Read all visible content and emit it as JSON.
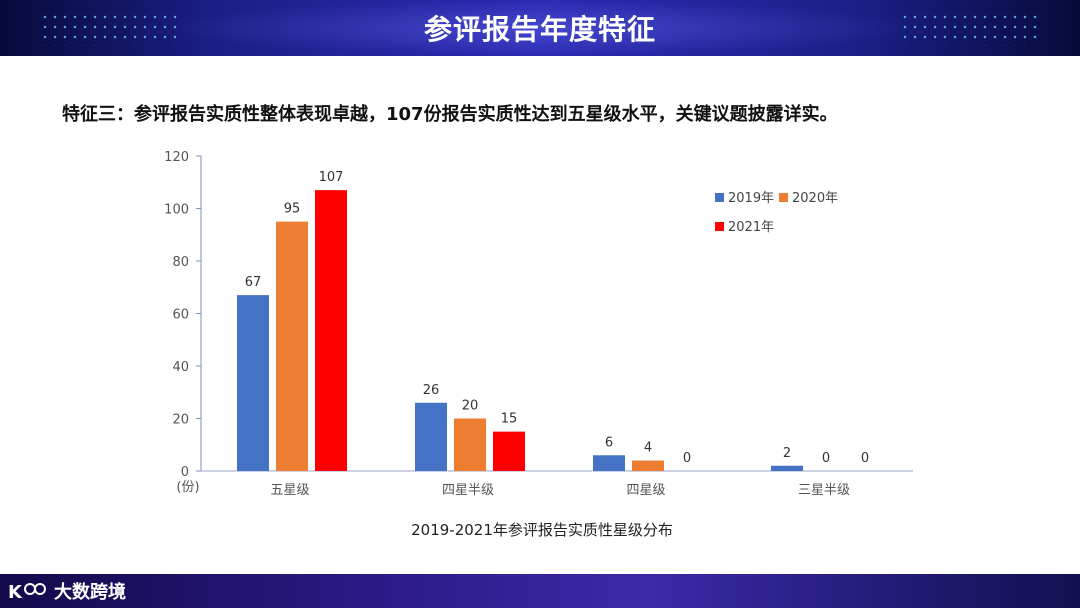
{
  "header": {
    "title": "参评报告年度特征"
  },
  "headline": "特征三：参评报告实质性整体表现卓越，107份报告实质性达到五星级水平，关键议题披露详实。",
  "footer": {
    "logo_text": "大数跨境"
  },
  "chart_data": {
    "type": "bar",
    "title": "2019-2021年参评报告实质性星级分布",
    "categories": [
      "五星级",
      "四星半级",
      "四星级",
      "三星半级"
    ],
    "series": [
      {
        "name": "2019年",
        "color": "#4472c4",
        "values": [
          67,
          26,
          6,
          2
        ]
      },
      {
        "name": "2020年",
        "color": "#ed7d31",
        "values": [
          95,
          20,
          4,
          0
        ]
      },
      {
        "name": "2021年",
        "color": "#ff0000",
        "values": [
          107,
          15,
          0,
          0
        ]
      }
    ],
    "y_unit_label": "(份)",
    "ylim": [
      0,
      120
    ],
    "y_ticks": [
      0,
      20,
      40,
      60,
      80,
      100,
      120
    ],
    "grid": false,
    "legend_position": "top-right"
  }
}
